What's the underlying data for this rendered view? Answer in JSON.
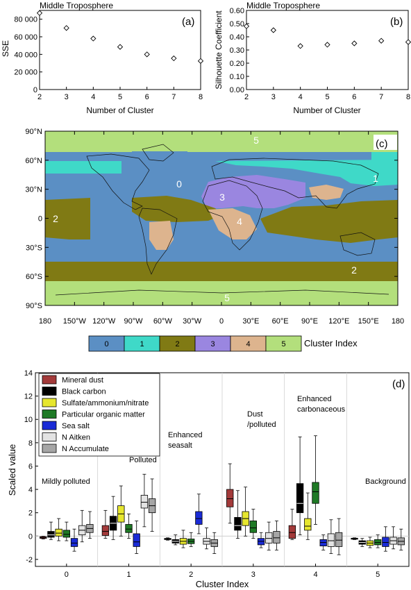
{
  "panel_a": {
    "title": "Middle Troposphere",
    "label": "(a)",
    "xlabel": "Number of Cluster",
    "ylabel": "SSE",
    "yticks": [
      "0",
      "20 000",
      "40 000",
      "60 000",
      "80 000"
    ],
    "xticks": [
      "2",
      "3",
      "4",
      "5",
      "6",
      "7",
      "8"
    ]
  },
  "panel_b": {
    "title": "Middle Troposphere",
    "label": "(b)",
    "xlabel": "Number of Cluster",
    "ylabel": "Silhouette Coefficient",
    "yticks": [
      "0.00",
      "0.10",
      "0.20",
      "0.30",
      "0.40",
      "0.50",
      "0.60"
    ],
    "xticks": [
      "2",
      "3",
      "4",
      "5",
      "6",
      "7",
      "8"
    ]
  },
  "panel_c": {
    "label": "(c)",
    "lat_ticks": [
      "90°N",
      "60°N",
      "30°N",
      "0",
      "30°S",
      "60°S",
      "90°S"
    ],
    "lon_ticks": [
      "180",
      "150°W",
      "120°W",
      "90°W",
      "60°W",
      "30°W",
      "0",
      "30°E",
      "60°E",
      "90°E",
      "120°E",
      "150°E",
      "180"
    ],
    "region_labels": [
      "5",
      "1",
      "0",
      "3",
      "2",
      "4",
      "2",
      "5"
    ],
    "colorbar_title": "Cluster Index",
    "colorbar_labels": [
      "0",
      "1",
      "2",
      "3",
      "4",
      "5"
    ],
    "colors": [
      "#5b8fc4",
      "#3fd9c8",
      "#807a14",
      "#9a86e0",
      "#ddb48e",
      "#b3df7c"
    ]
  },
  "panel_d": {
    "label": "(d)",
    "ylabel": "Scaled value",
    "xlabel": "Cluster Index",
    "yticks": [
      "-2",
      "0",
      "2",
      "4",
      "6",
      "8",
      "10",
      "12",
      "14"
    ],
    "legend": [
      {
        "name": "Mineral dust",
        "color": "#a33a3a"
      },
      {
        "name": "Black carbon",
        "color": "#000000"
      },
      {
        "name": "Sulfate/ammonium/nitrate",
        "color": "#e6e62e"
      },
      {
        "name": "Particular organic matter",
        "color": "#1f7a26"
      },
      {
        "name": "Sea salt",
        "color": "#1a2bd6"
      },
      {
        "name": "N Aitken",
        "color": "#e3e3e3"
      },
      {
        "name": "N Accumulate",
        "color": "#a6a6a6"
      }
    ],
    "group_titles": [
      [
        "Mildly polluted"
      ],
      [
        "Polluted"
      ],
      [
        "Enhanced",
        "seasalt"
      ],
      [
        "Dust",
        "/polluted"
      ],
      [
        "Enhanced",
        "carbonaceous"
      ],
      [
        "Background"
      ]
    ]
  },
  "chart_data": [
    {
      "type": "scatter",
      "title": "Middle Troposphere",
      "xlabel": "Number of Cluster",
      "ylabel": "SSE",
      "x": [
        2,
        3,
        4,
        5,
        6,
        7,
        8
      ],
      "y": [
        87000,
        70000,
        58000,
        48500,
        40000,
        35500,
        32500
      ],
      "xlim": [
        2,
        8
      ],
      "ylim": [
        0,
        90000
      ],
      "marker": "diamond"
    },
    {
      "type": "scatter",
      "title": "Middle Troposphere",
      "xlabel": "Number of Cluster",
      "ylabel": "Silhouette Coefficient",
      "x": [
        2,
        3,
        4,
        5,
        6,
        7,
        8
      ],
      "y": [
        0.48,
        0.45,
        0.33,
        0.34,
        0.35,
        0.37,
        0.36
      ],
      "xlim": [
        2,
        8
      ],
      "ylim": [
        0,
        0.6
      ],
      "marker": "diamond"
    },
    {
      "type": "heatmap",
      "title": "",
      "colorbar_title": "Cluster Index",
      "categories": [
        0,
        1,
        2,
        3,
        4,
        5
      ],
      "region_labels": [
        {
          "cluster": 5,
          "lon": -150,
          "lat": 5
        },
        {
          "cluster": 0,
          "lon": -3,
          "lat": 55
        }
      ]
    },
    {
      "type": "box",
      "xlabel": "Cluster Index",
      "ylabel": "Scaled value",
      "ylim": [
        -2.6,
        14
      ],
      "categories": [
        "0",
        "1",
        "2",
        "3",
        "4",
        "5"
      ],
      "series": [
        {
          "name": "Mineral dust",
          "stats": [
            {
              "q1": -0.2,
              "median": -0.12,
              "q3": -0.05,
              "whislo": -0.25,
              "whishi": -0.02
            },
            {
              "q1": 0.05,
              "median": 0.4,
              "q3": 0.9,
              "whislo": -0.2,
              "whishi": 2.2
            },
            {
              "q1": -0.3,
              "median": -0.25,
              "q3": -0.2,
              "whislo": -0.35,
              "whishi": -0.15
            },
            {
              "q1": 2.5,
              "median": 3.2,
              "q3": 4.0,
              "whislo": 1.1,
              "whishi": 6.2
            },
            {
              "q1": -0.2,
              "median": 0.3,
              "q3": 0.9,
              "whislo": -0.3,
              "whishi": 2.3
            },
            {
              "q1": -0.25,
              "median": -0.22,
              "q3": -0.18,
              "whislo": -0.3,
              "whishi": -0.15
            }
          ]
        },
        {
          "name": "Black carbon",
          "stats": [
            {
              "q1": -0.1,
              "median": 0.1,
              "q3": 0.4,
              "whislo": -0.3,
              "whishi": 1.2
            },
            {
              "q1": 0.5,
              "median": 1.1,
              "q3": 1.7,
              "whislo": -0.3,
              "whishi": 3.4
            },
            {
              "q1": -0.6,
              "median": -0.45,
              "q3": -0.3,
              "whislo": -0.75,
              "whishi": 0.1
            },
            {
              "q1": 0.5,
              "median": 0.9,
              "q3": 1.6,
              "whislo": -0.2,
              "whishi": 3.9
            },
            {
              "q1": 2.0,
              "median": 2.8,
              "q3": 4.5,
              "whislo": 0.1,
              "whishi": 8.5
            },
            {
              "q1": -0.7,
              "median": -0.55,
              "q3": -0.4,
              "whislo": -0.9,
              "whishi": -0.2
            }
          ]
        },
        {
          "name": "Sulfate/ammonium/nitrate",
          "stats": [
            {
              "q1": 0.0,
              "median": 0.25,
              "q3": 0.6,
              "whislo": -0.4,
              "whishi": 1.5
            },
            {
              "q1": 1.2,
              "median": 1.9,
              "q3": 2.6,
              "whislo": 0.0,
              "whishi": 4.3
            },
            {
              "q1": -0.7,
              "median": -0.45,
              "q3": -0.2,
              "whislo": -1.0,
              "whishi": 0.5
            },
            {
              "q1": 0.9,
              "median": 1.5,
              "q3": 2.1,
              "whislo": 0.0,
              "whishi": 4.2
            },
            {
              "q1": 0.5,
              "median": 0.85,
              "q3": 1.5,
              "whislo": -0.3,
              "whishi": 3.7
            },
            {
              "q1": -0.8,
              "median": -0.6,
              "q3": -0.4,
              "whislo": -1.0,
              "whishi": -0.1
            }
          ]
        },
        {
          "name": "Particular organic matter",
          "stats": [
            {
              "q1": -0.1,
              "median": 0.15,
              "q3": 0.5,
              "whislo": -0.4,
              "whishi": 1.2
            },
            {
              "q1": 0.3,
              "median": 0.6,
              "q3": 1.0,
              "whislo": -0.2,
              "whishi": 1.9
            },
            {
              "q1": -0.65,
              "median": -0.45,
              "q3": -0.25,
              "whislo": -0.9,
              "whishi": 0.3
            },
            {
              "q1": 0.3,
              "median": 0.7,
              "q3": 1.3,
              "whislo": -0.2,
              "whishi": 2.3
            },
            {
              "q1": 2.8,
              "median": 3.8,
              "q3": 4.6,
              "whislo": 1.0,
              "whishi": 8.6
            },
            {
              "q1": -0.75,
              "median": -0.55,
              "q3": -0.3,
              "whislo": -1.0,
              "whishi": 0.1
            }
          ]
        },
        {
          "name": "Sea salt",
          "stats": [
            {
              "q1": -0.9,
              "median": -0.6,
              "q3": -0.2,
              "whislo": -1.3,
              "whishi": 0.6
            },
            {
              "q1": -0.9,
              "median": -0.5,
              "q3": 0.2,
              "whislo": -1.5,
              "whishi": 1.3
            },
            {
              "q1": 1.0,
              "median": 1.5,
              "q3": 2.1,
              "whislo": 0.2,
              "whishi": 3.6
            },
            {
              "q1": -0.75,
              "median": -0.45,
              "q3": -0.2,
              "whislo": -1.0,
              "whishi": 0.3
            },
            {
              "q1": -0.85,
              "median": -0.55,
              "q3": -0.3,
              "whislo": -1.2,
              "whishi": 0.1
            },
            {
              "q1": -0.9,
              "median": -0.55,
              "q3": -0.1,
              "whislo": -1.3,
              "whishi": 0.8
            }
          ]
        },
        {
          "name": "N Aitken",
          "stats": [
            {
              "q1": 0.1,
              "median": 0.5,
              "q3": 0.9,
              "whislo": -0.5,
              "whishi": 2.2
            },
            {
              "q1": 2.4,
              "median": 2.9,
              "q3": 3.5,
              "whislo": 0.8,
              "whishi": 5.3
            },
            {
              "q1": -0.7,
              "median": -0.45,
              "q3": -0.2,
              "whislo": -1.1,
              "whishi": 0.7
            },
            {
              "q1": -0.6,
              "median": -0.2,
              "q3": 0.3,
              "whislo": -1.2,
              "whishi": 1.2
            },
            {
              "q1": -0.9,
              "median": -0.4,
              "q3": 0.2,
              "whislo": -1.5,
              "whishi": 1.4
            },
            {
              "q1": -0.7,
              "median": -0.4,
              "q3": -0.1,
              "whislo": -1.1,
              "whishi": 0.8
            }
          ]
        },
        {
          "name": "N Accumulate",
          "stats": [
            {
              "q1": 0.3,
              "median": 0.65,
              "q3": 1.0,
              "whislo": -0.2,
              "whishi": 2.1
            },
            {
              "q1": 2.0,
              "median": 2.6,
              "q3": 3.2,
              "whislo": 0.4,
              "whishi": 4.9
            },
            {
              "q1": -0.9,
              "median": -0.6,
              "q3": -0.3,
              "whislo": -1.5,
              "whishi": 0.3
            },
            {
              "q1": -0.6,
              "median": -0.15,
              "q3": 0.4,
              "whislo": -1.2,
              "whishi": 1.3
            },
            {
              "q1": -0.9,
              "median": -0.35,
              "q3": 0.3,
              "whislo": -1.6,
              "whishi": 1.5
            },
            {
              "q1": -0.75,
              "median": -0.45,
              "q3": -0.15,
              "whislo": -1.2,
              "whishi": 0.6
            }
          ]
        }
      ]
    }
  ]
}
